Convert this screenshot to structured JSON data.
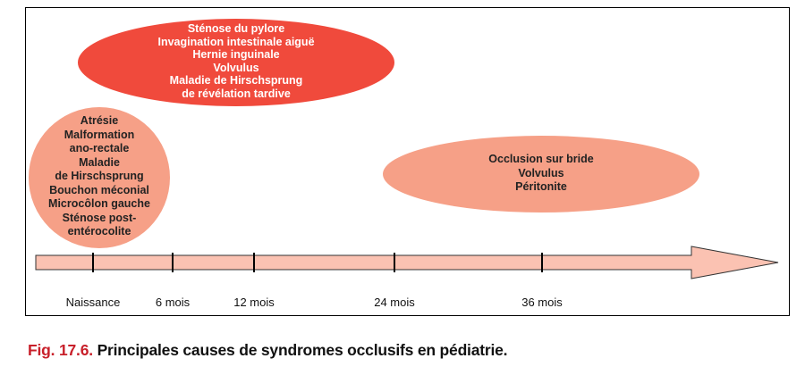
{
  "colors": {
    "top_ellipse": "#f04a3c",
    "circle": "#f6a087",
    "right_ellipse": "#f6a087",
    "arrow_fill": "#fbc2b2",
    "caption_fig": "#c8202a"
  },
  "top_ellipse": {
    "lines": [
      "Sténose du pylore",
      "Invagination intestinale aiguë",
      "Hernie inguinale",
      "Volvulus",
      "Maladie de Hirschsprung",
      "de révélation tardive"
    ]
  },
  "circle": {
    "lines": [
      "Atrésie",
      "Malformation",
      "ano-rectale",
      "Maladie",
      "de Hirschsprung",
      "Bouchon méconial",
      "Microcôlon gauche",
      "Sténose post-",
      "entérocolite"
    ]
  },
  "right_ellipse": {
    "lines": [
      "Occlusion sur bride",
      "Volvulus",
      "Péritonite"
    ]
  },
  "timeline": {
    "ticks": [
      "Naissance",
      "6 mois",
      "12 mois",
      "24 mois",
      "36 mois"
    ]
  },
  "caption": {
    "fig": "Fig. 17.6.",
    "text": "Principales causes de syndromes occlusifs en pédiatrie."
  }
}
